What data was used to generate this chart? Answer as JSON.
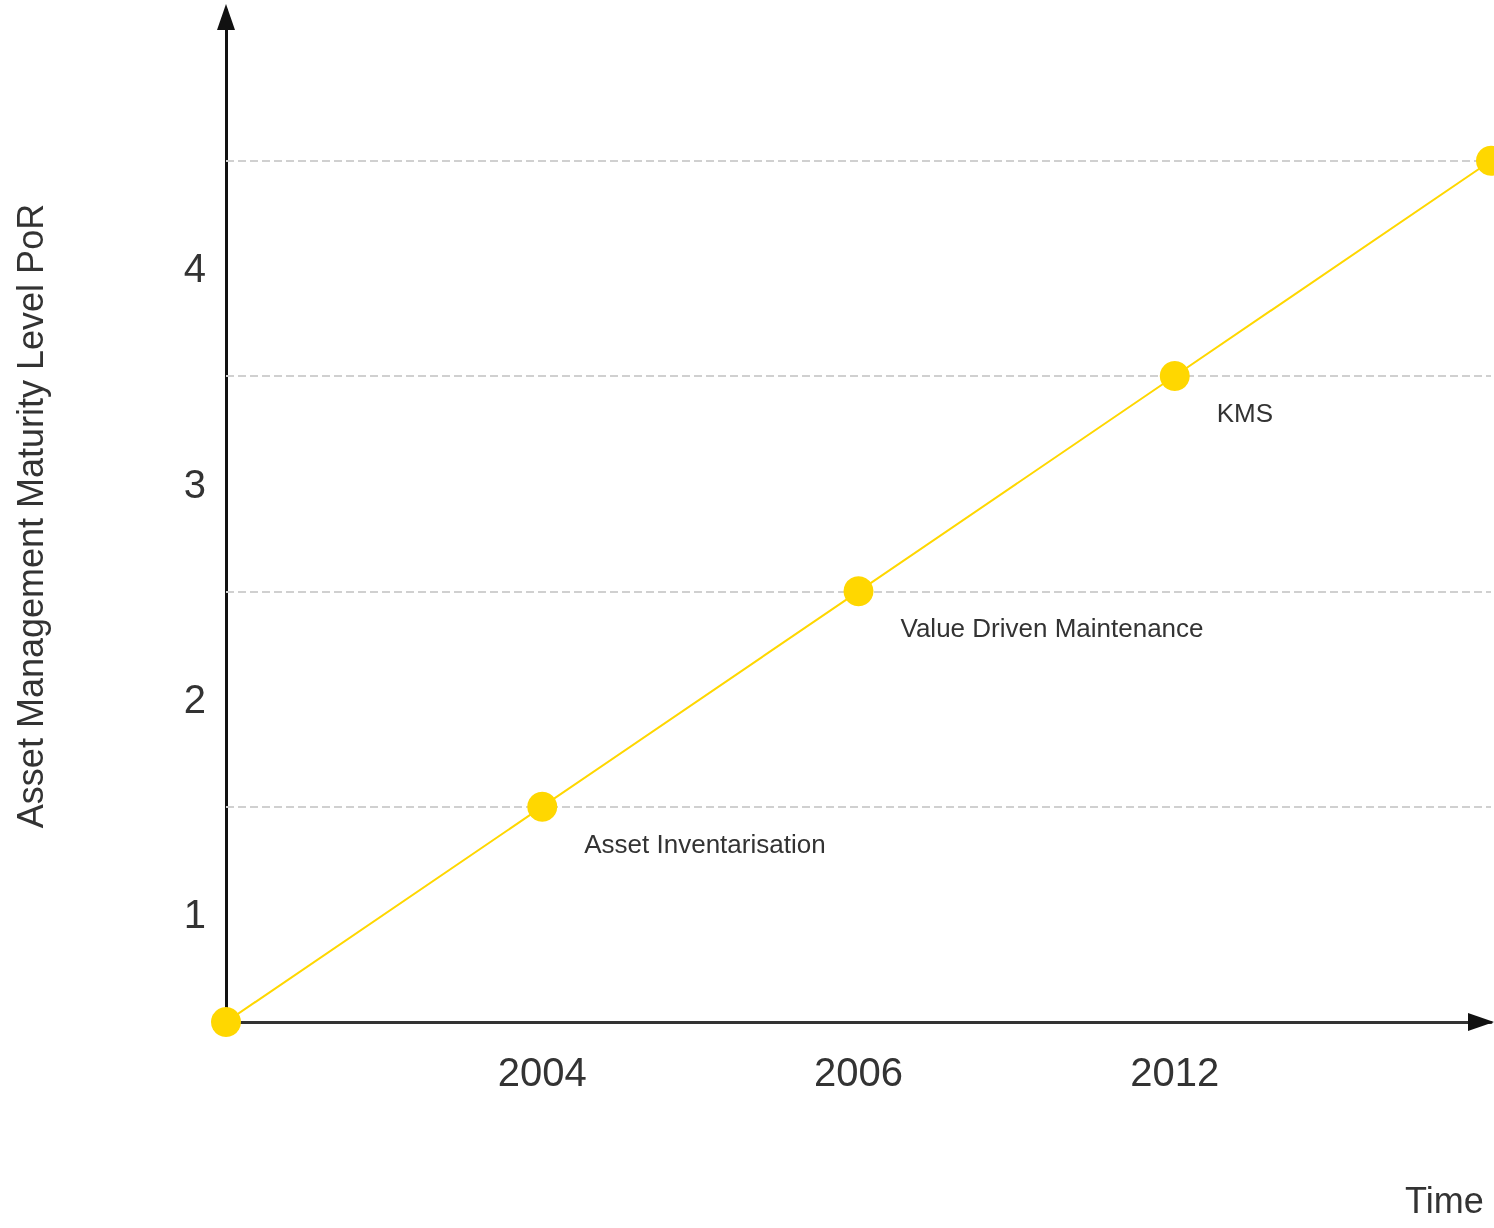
{
  "chart_data": {
    "type": "line",
    "ylabel": "Asset Management Maturity Level PoR",
    "xlabel": "Time",
    "categories": [
      null,
      "2004",
      "2006",
      "2012",
      null
    ],
    "series": [
      {
        "color": "#ffd700",
        "values": [
          0.5,
          1.5,
          2.5,
          3.5,
          4.5
        ]
      }
    ],
    "marker": "circle",
    "line_style": "solid",
    "grid": false,
    "ylim": [
      0.5,
      5.2
    ],
    "yticks": [
      1,
      2,
      3,
      4
    ],
    "ref_lines": [
      {
        "axis": "y",
        "value": 1.5,
        "line_style": "dashed",
        "color": "#d0d0d0"
      },
      {
        "axis": "y",
        "value": 2.5,
        "line_style": "dashed",
        "color": "#d0d0d0"
      },
      {
        "axis": "y",
        "value": 3.5,
        "line_style": "dashed",
        "color": "#d0d0d0"
      },
      {
        "axis": "y",
        "value": 4.5,
        "line_style": "dashed",
        "color": "#d0d0d0"
      }
    ],
    "annotations": [
      {
        "text": "Asset Inventarisation",
        "x": "2004",
        "y": 1.5
      },
      {
        "text": "Value Driven Maintenance",
        "x": "2006",
        "y": 2.5
      },
      {
        "text": "KMS",
        "x": "2012",
        "y": 3.5
      }
    ]
  }
}
